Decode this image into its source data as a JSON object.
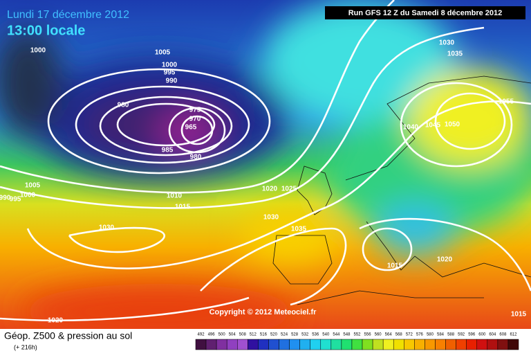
{
  "header": {
    "date": "Lundi 17 décembre 2012",
    "time": "13:00 locale",
    "run": "Run GFS 12 Z du Samedi 8 décembre 2012"
  },
  "copyright": "Copyright © 2012 Meteociel.fr",
  "footer": {
    "title": "Géop. Z500 & pression au sol",
    "lead": "(+ 216h)"
  },
  "isobar_labels": [
    1000,
    1005,
    1000,
    995,
    990,
    980,
    975,
    970,
    965,
    985,
    980,
    1005,
    1000,
    990,
    995,
    1010,
    1015,
    1020,
    1025,
    1030,
    1035,
    1030,
    1030,
    1035,
    1040,
    1045,
    1050,
    1055,
    1015,
    1020,
    1015,
    1020
  ],
  "colorbar": [
    492,
    496,
    500,
    504,
    508,
    512,
    516,
    520,
    524,
    528,
    532,
    536,
    540,
    544,
    548,
    552,
    556,
    560,
    564,
    568,
    572,
    576,
    580,
    584,
    588,
    592,
    596,
    600,
    604,
    608,
    612
  ]
}
